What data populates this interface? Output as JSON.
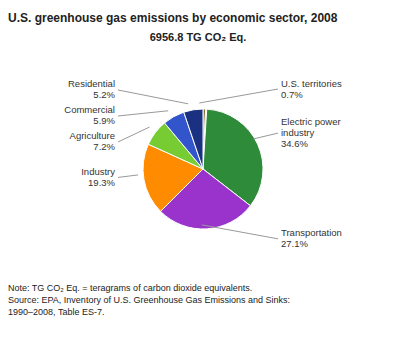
{
  "chart_data": {
    "type": "pie",
    "title": "U.S. greenhouse gas emissions by economic sector, 2008",
    "subtitle": "6956.8 TG CO₂ Eq.",
    "categories": [
      "U.S. territories",
      null,
      "Electric power industry",
      "Transportation",
      "Industry",
      "Agriculture",
      "Commercial",
      "Residential"
    ],
    "values": [
      0.7,
      0.3,
      34.6,
      27.1,
      19.3,
      7.2,
      5.9,
      5.2
    ],
    "value_labels": [
      "0.7%",
      null,
      "34.6%",
      "27.1%",
      "19.3%",
      "7.2%",
      "5.9%",
      "5.2%"
    ],
    "colors": [
      "#7a6b20",
      "#cc4400",
      "#2e8b3a",
      "#9933cc",
      "#ff8c00",
      "#77cc33",
      "#3355cc",
      "#1a3080"
    ],
    "data_labels": true,
    "annotations": [
      "Note: TG CO₂ Eq. = teragrams of carbon dioxide equivalents.",
      "Source: EPA, Inventory of U.S. Greenhouse Gas Emissions and Sinks:",
      "1990–2008, Table ES-7."
    ]
  }
}
